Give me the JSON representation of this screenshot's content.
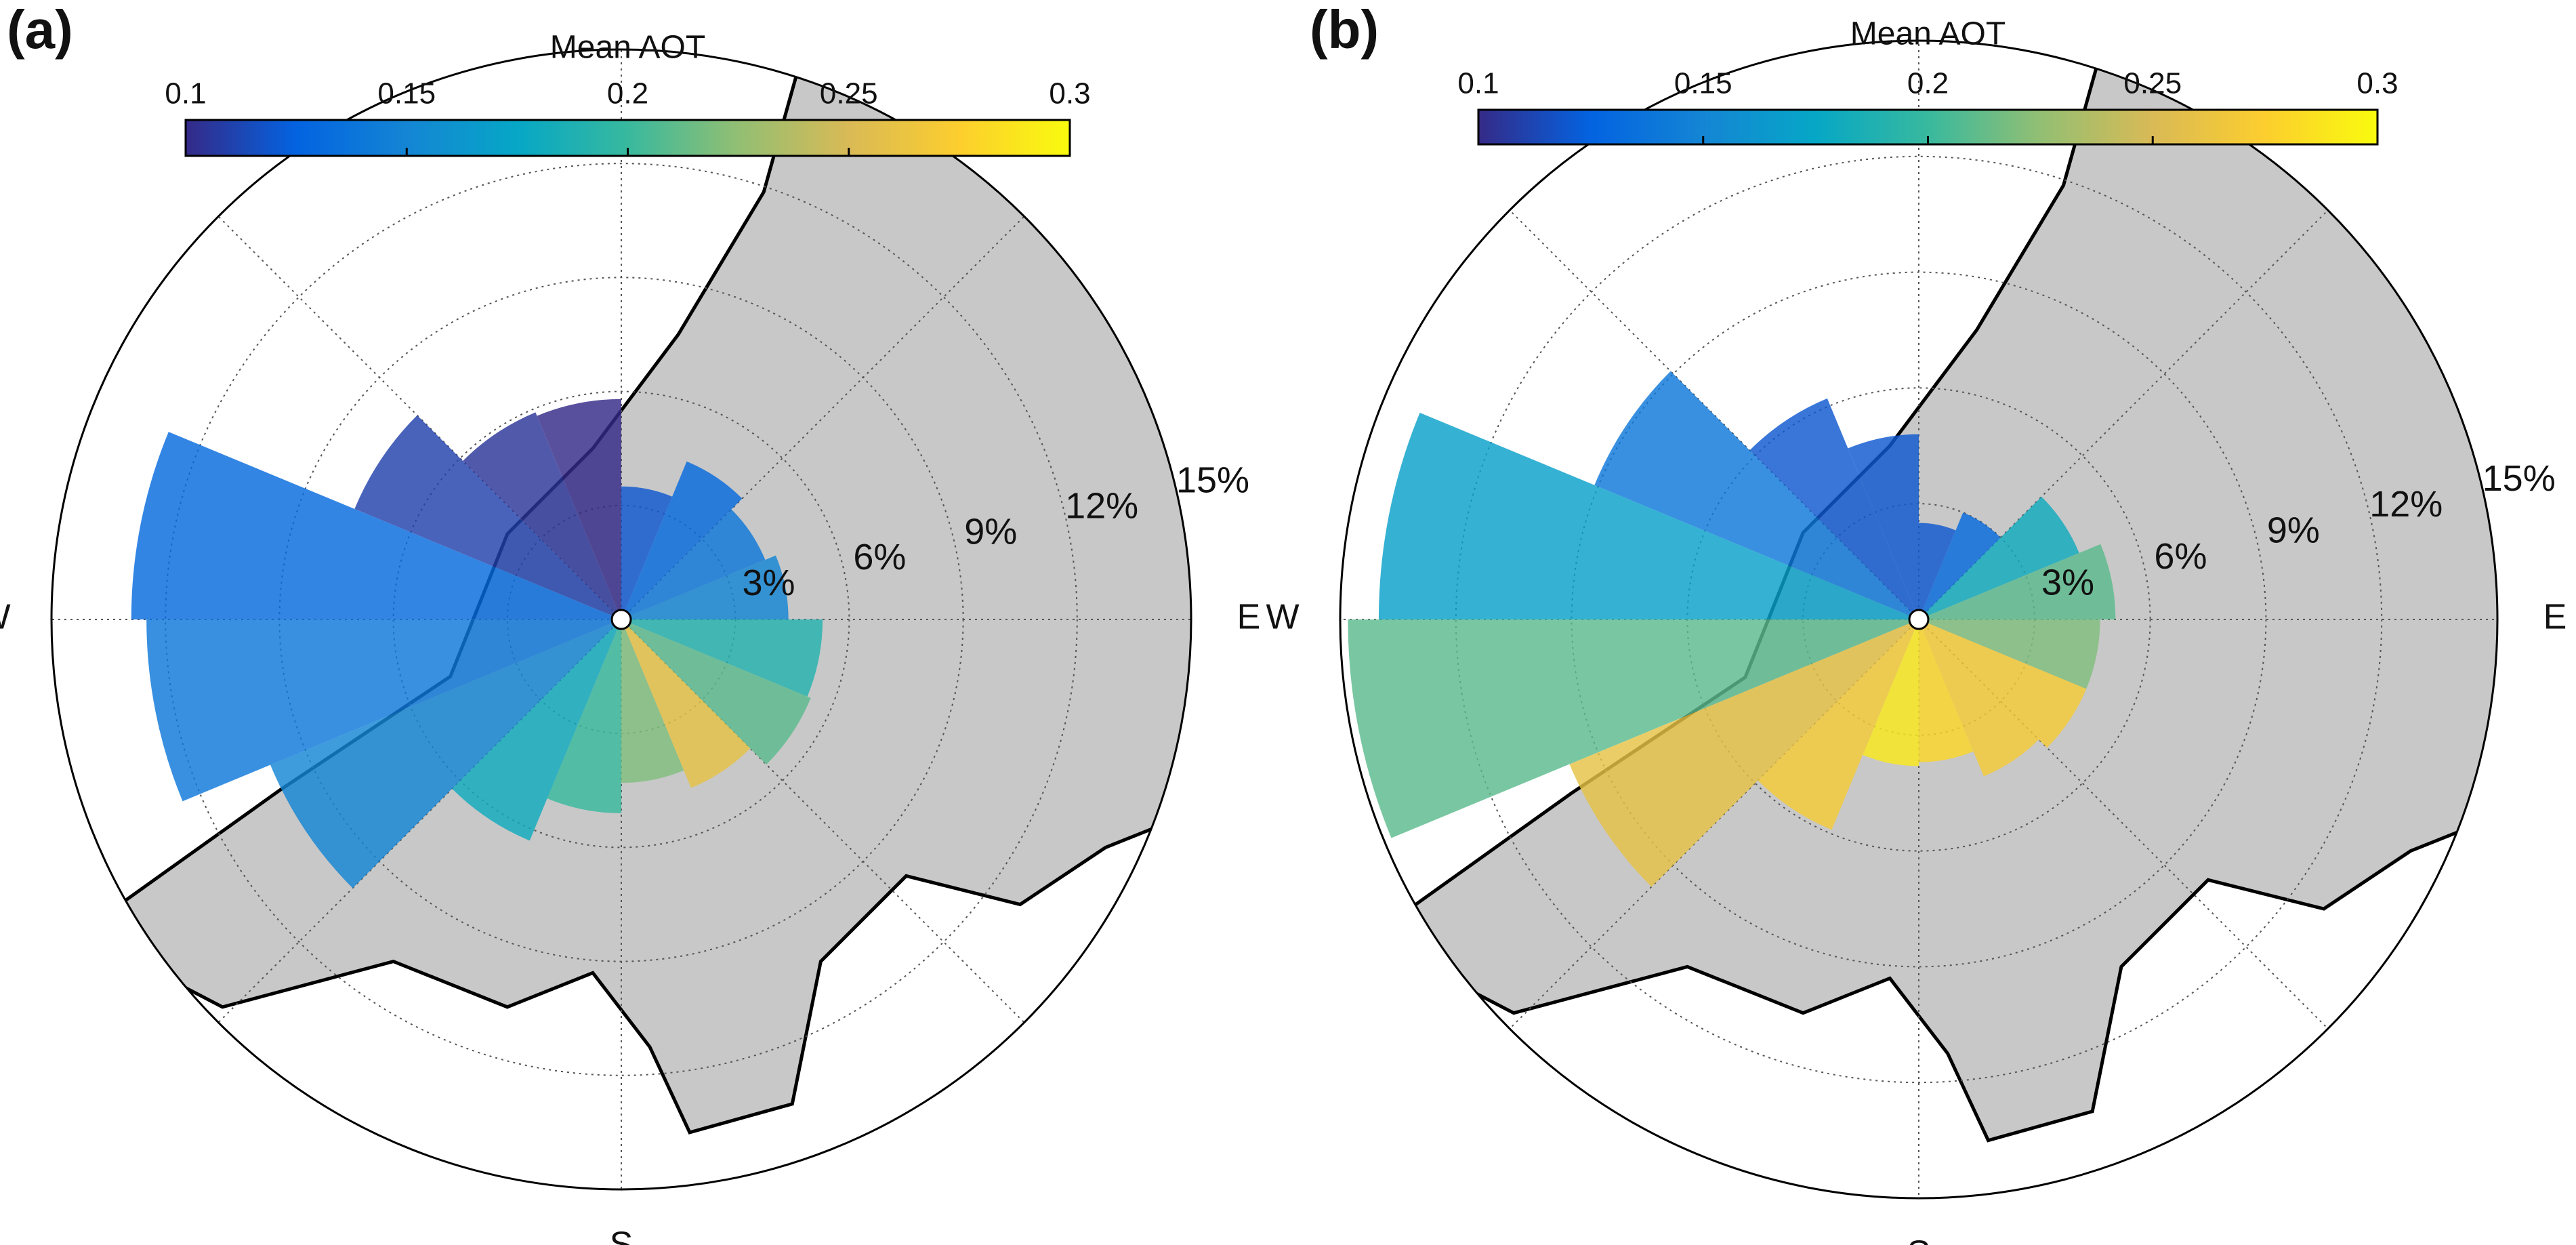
{
  "chart_data": [
    {
      "type": "polar_bar",
      "panel_label": "(a)",
      "colorbar_label": "Mean AOT",
      "clim": [
        0.1,
        0.3
      ],
      "cticks": [
        0.1,
        0.15,
        0.2,
        0.25,
        0.3
      ],
      "colormap": [
        "#352a87",
        "#0363e1",
        "#1485d4",
        "#06a7c6",
        "#38b99e",
        "#92bf73",
        "#d9ba56",
        "#fcce2e",
        "#f9fb0e"
      ],
      "rlim": [
        0,
        15
      ],
      "rticks": [
        {
          "value": 3,
          "label": "3%"
        },
        {
          "value": 6,
          "label": "6%"
        },
        {
          "value": 9,
          "label": "9%"
        },
        {
          "value": 12,
          "label": "12%"
        },
        {
          "value": 15,
          "label": "15%"
        }
      ],
      "thetaticks": [
        {
          "value": 90,
          "label": "E"
        },
        {
          "value": 180,
          "label": "S"
        },
        {
          "value": 270,
          "label": "W"
        }
      ],
      "grid": true,
      "categories": [
        null,
        null,
        null,
        null,
        null,
        null,
        null,
        null,
        null,
        null,
        null,
        null,
        null,
        null,
        null,
        null
      ],
      "values": [
        3.5,
        4.5,
        4.1,
        4.4,
        5.3,
        5.4,
        4.8,
        4.3,
        5.1,
        6.3,
        10.0,
        12.5,
        12.9,
        7.6,
        5.9,
        5.8
      ],
      "aot": [
        0.12,
        0.13,
        0.14,
        0.15,
        0.19,
        0.21,
        0.26,
        0.22,
        0.2,
        0.18,
        0.15,
        0.14,
        0.13,
        0.11,
        0.105,
        0.1
      ]
    },
    {
      "type": "polar_bar",
      "panel_label": "(b)",
      "colorbar_label": "Mean AOT",
      "clim": [
        0.1,
        0.3
      ],
      "cticks": [
        0.1,
        0.15,
        0.2,
        0.25,
        0.3
      ],
      "colormap": [
        "#352a87",
        "#0363e1",
        "#1485d4",
        "#06a7c6",
        "#38b99e",
        "#92bf73",
        "#d9ba56",
        "#fcce2e",
        "#f9fb0e"
      ],
      "rlim": [
        0,
        15
      ],
      "rticks": [
        {
          "value": 3,
          "label": "3%"
        },
        {
          "value": 6,
          "label": "6%"
        },
        {
          "value": 9,
          "label": "9%"
        },
        {
          "value": 12,
          "label": "12%"
        },
        {
          "value": 15,
          "label": "15%"
        }
      ],
      "thetaticks": [
        {
          "value": 90,
          "label": "E"
        },
        {
          "value": 180,
          "label": "S"
        },
        {
          "value": 270,
          "label": "W"
        }
      ],
      "grid": true,
      "categories": [
        null,
        null,
        null,
        null,
        null,
        null,
        null,
        null,
        null,
        null,
        null,
        null,
        null,
        null,
        null,
        null
      ],
      "values": [
        2.5,
        3.0,
        4.5,
        5.1,
        4.7,
        4.7,
        4.4,
        3.7,
        3.8,
        5.9,
        9.8,
        14.8,
        14.0,
        9.1,
        6.2,
        4.8
      ],
      "aot": [
        0.12,
        0.13,
        0.18,
        0.21,
        0.22,
        0.27,
        0.27,
        0.28,
        0.29,
        0.27,
        0.26,
        0.21,
        0.17,
        0.14,
        0.12,
        0.12
      ]
    }
  ]
}
